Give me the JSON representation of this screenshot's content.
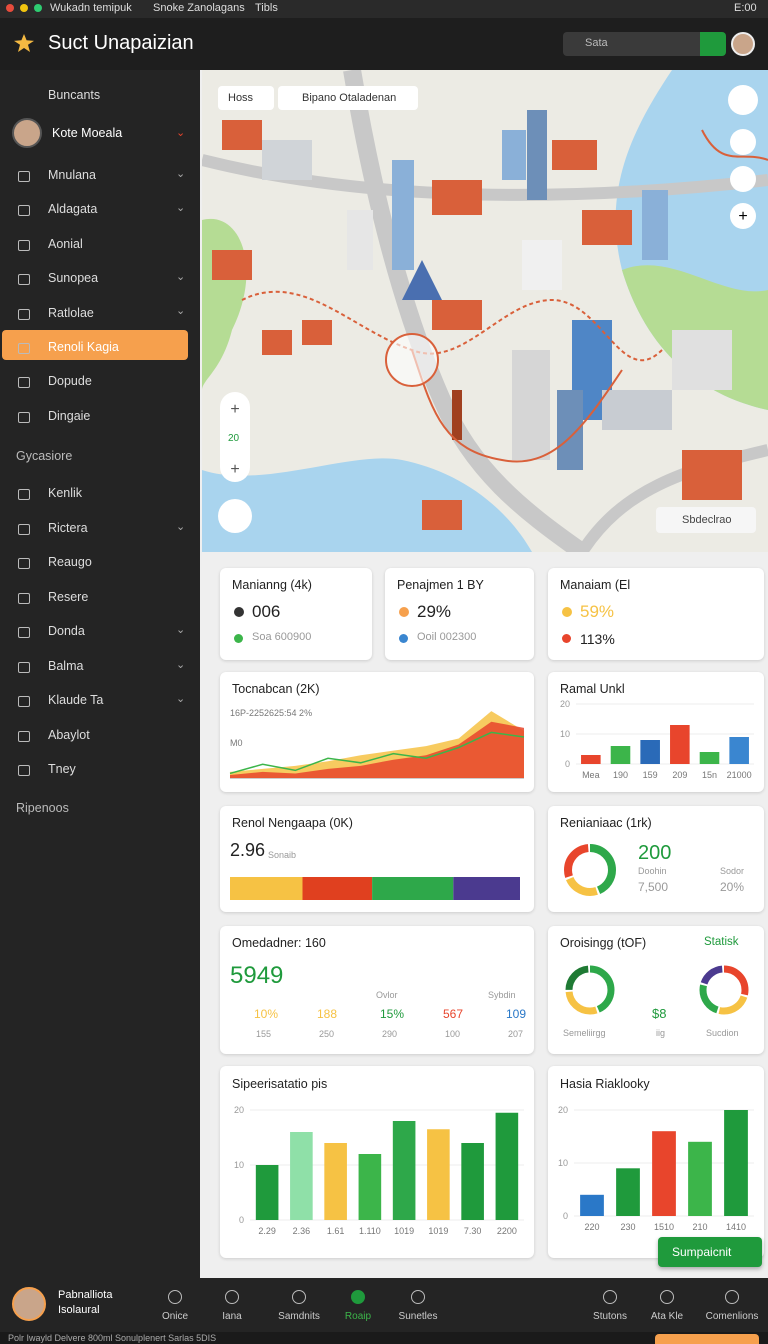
{
  "menubar": {
    "items": [
      "Wukadn temipuk",
      "Snoke Zanolagans",
      "Tibls"
    ],
    "clock": "E:00"
  },
  "header": {
    "title": "Suct Unapaizian",
    "search": "Sata"
  },
  "sidebar": {
    "top": "Buncants",
    "profile": "Kote Moeala",
    "items": [
      "Mnulana",
      "Aldagata",
      "Aonial",
      "Sunopea",
      "Ratlolae",
      "Renoli Kagia",
      "Dopude",
      "Dingaie"
    ],
    "section": "Gycasiore",
    "items2": [
      "Kenlik",
      "Rictera",
      "Reaugo",
      "Resere",
      "Donda",
      "Balma",
      "Klaude Ta",
      "Abaylot",
      "Tney"
    ],
    "footer": "Ripenoos"
  },
  "map": {
    "chip": "Hoss",
    "search": "Bipano Otaladenan",
    "zoom": "20",
    "badge": "Sbdeclrao"
  },
  "stats": [
    {
      "title": "Manianng (4k)",
      "value": "006",
      "sub": "Soa 600900"
    },
    {
      "title": "Penajmen 1 BY",
      "value": "29%",
      "sub": "Ooil 002300"
    },
    {
      "title": "Manaiam (El",
      "value": "59%",
      "sub": "113%"
    }
  ],
  "trend": {
    "title": "Tocnabcan (2K)",
    "subtitle": "16P-2252625:54 2%",
    "axis_label": "M0",
    "ylim": [
      0,
      10
    ],
    "series": [
      {
        "color": "#f6c244",
        "values": [
          0.8,
          1.2,
          1.6,
          2.2,
          3,
          3.6,
          4.2,
          5.2,
          8.8,
          6.2
        ]
      },
      {
        "color": "#e8452c",
        "values": [
          0.4,
          0.8,
          0.6,
          1.2,
          1.6,
          2.4,
          3,
          4.4,
          7.4,
          6.6
        ]
      },
      {
        "color": "#3cb54a",
        "values": [
          0.6,
          1.8,
          1,
          2.6,
          2,
          3.2,
          2.6,
          4,
          6,
          5.4
        ]
      }
    ]
  },
  "ramal": {
    "title": "Ramal Unkl",
    "ylim": [
      0,
      20
    ],
    "yticks": [
      0,
      10,
      20
    ],
    "categories": [
      "Mea",
      "190",
      "159",
      "209",
      "15n",
      "21000"
    ],
    "values": [
      3,
      6,
      8,
      13,
      4,
      9
    ],
    "colors": [
      "#e8452c",
      "#3cb54a",
      "#2a6ab8",
      "#e8452c",
      "#3cb54a",
      "#3a86d0"
    ]
  },
  "stack": {
    "title": "Renol Nengaapa (0K)",
    "value": "2.96",
    "unit": "Sonaib",
    "segments": [
      25,
      24,
      28,
      23
    ],
    "colors": [
      "#f6c244",
      "#e0401f",
      "#2ea84a",
      "#4b3a8f"
    ]
  },
  "donut": {
    "title": "Renianiaac (1rk)",
    "value": "200",
    "label": "Doohin",
    "sub": "7,500",
    "side": "Sodor",
    "side_value": "20%",
    "segments": [
      45,
      25,
      30
    ],
    "colors": [
      "#2ea84a",
      "#f6c244",
      "#e8452c"
    ]
  },
  "omed": {
    "title": "Omedadner: 160",
    "value": "5949",
    "icon_labels": [
      "Ovlor",
      "Sybdin"
    ],
    "row1": [
      "10%",
      "188",
      "15%",
      "567",
      "109"
    ],
    "row2": [
      "155",
      "250",
      "290",
      "100",
      "207"
    ]
  },
  "orois": {
    "title": "Oroisingg (tOF)",
    "link": "Statisk",
    "value": "$8",
    "labels": [
      "Semeliirgg",
      "iig",
      "Sucdion"
    ],
    "left": {
      "segments": [
        45,
        30,
        25
      ],
      "colors": [
        "#2ea84a",
        "#f6c244",
        "#1f7a34"
      ]
    },
    "right": {
      "segments": [
        30,
        25,
        25,
        20
      ],
      "colors": [
        "#e8452c",
        "#f6c244",
        "#2ea84a",
        "#4b3a8f"
      ]
    }
  },
  "spend": {
    "title": "Sipeerisatatio pis",
    "ylim": [
      0,
      20
    ],
    "yticks": [
      0,
      10,
      20
    ],
    "categories": [
      "2.29",
      "2.36",
      "1.61",
      "1.110",
      "1019",
      "1019",
      "7.30",
      "2200"
    ],
    "values": [
      10,
      16,
      14,
      12,
      18,
      16.5,
      14,
      19.5
    ],
    "colors": [
      "#1f9a3c",
      "#8fe0a8",
      "#f6c244",
      "#3cb54a",
      "#2ea84a",
      "#f6c244",
      "#1f9a3c",
      "#1f9a3c"
    ]
  },
  "hasia": {
    "title": "Hasia Riaklooky",
    "ylim": [
      0,
      20
    ],
    "yticks": [
      0,
      10,
      20
    ],
    "categories": [
      "220",
      "230",
      "1510",
      "210",
      "1410"
    ],
    "values": [
      4,
      9,
      16,
      14,
      20
    ],
    "colors": [
      "#2a78c8",
      "#1f9a3c",
      "#e8452c",
      "#3cb54a",
      "#1f9a3c"
    ]
  },
  "button": "Sumpaicnit",
  "bottombar": {
    "name": "Pabnalliota",
    "role": "Isolaural",
    "nav": [
      "Onice",
      "Iana",
      "Samdnits",
      "Roaip",
      "Sunetles"
    ],
    "nav_right": [
      "Stutons",
      "Ata Kle",
      "Comenlions"
    ]
  },
  "footer": "Polr Iwayld Delvere 800ml Sonulplenert Sarlas 5DIS"
}
